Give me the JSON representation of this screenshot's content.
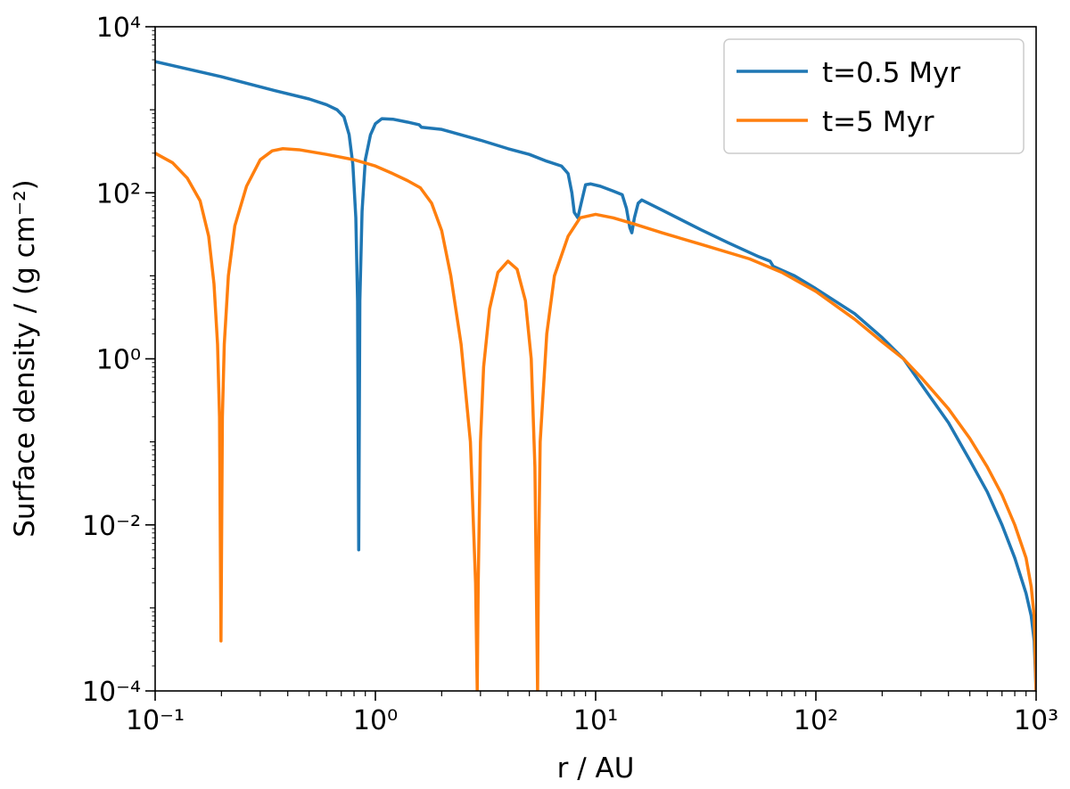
{
  "chart_data": {
    "type": "line",
    "title": "",
    "xlabel": "r / AU",
    "ylabel": "Surface density / (g cm⁻²)",
    "xscale": "log",
    "yscale": "log",
    "xlim": [
      0.1,
      1000
    ],
    "ylim": [
      0.0001,
      10000
    ],
    "grid": false,
    "legend": "top-right",
    "x_ticks": [
      {
        "value": 0.1,
        "label": "10⁻¹"
      },
      {
        "value": 1,
        "label": "10⁰"
      },
      {
        "value": 10,
        "label": "10¹"
      },
      {
        "value": 100,
        "label": "10²"
      },
      {
        "value": 1000,
        "label": "10³"
      }
    ],
    "y_ticks": [
      {
        "value": 0.0001,
        "label": "10⁻⁴"
      },
      {
        "value": 0.01,
        "label": "10⁻²"
      },
      {
        "value": 1,
        "label": "10⁰"
      },
      {
        "value": 100,
        "label": "10²"
      },
      {
        "value": 10000,
        "label": "10⁴"
      }
    ],
    "series": [
      {
        "name": "t=0.5 Myr",
        "color": "#1f77b4",
        "points": [
          [
            0.1,
            3800
          ],
          [
            0.2,
            2500
          ],
          [
            0.35,
            1700
          ],
          [
            0.5,
            1350
          ],
          [
            0.6,
            1150
          ],
          [
            0.67,
            1000
          ],
          [
            0.72,
            820
          ],
          [
            0.76,
            500
          ],
          [
            0.79,
            220
          ],
          [
            0.815,
            50
          ],
          [
            0.83,
            5
          ],
          [
            0.84,
            0.005
          ],
          [
            0.85,
            5
          ],
          [
            0.87,
            60
          ],
          [
            0.9,
            250
          ],
          [
            0.95,
            500
          ],
          [
            1.0,
            680
          ],
          [
            1.07,
            780
          ],
          [
            1.2,
            770
          ],
          [
            1.4,
            710
          ],
          [
            1.58,
            660
          ],
          [
            1.62,
            615
          ],
          [
            2.0,
            580
          ],
          [
            3.0,
            430
          ],
          [
            4.0,
            340
          ],
          [
            5.0,
            290
          ],
          [
            6.0,
            240
          ],
          [
            7.0,
            210
          ],
          [
            7.5,
            170
          ],
          [
            7.8,
            100
          ],
          [
            8.0,
            58
          ],
          [
            8.3,
            50
          ],
          [
            8.6,
            75
          ],
          [
            9.0,
            125
          ],
          [
            9.5,
            128
          ],
          [
            10.5,
            120
          ],
          [
            12.0,
            105
          ],
          [
            13.2,
            95
          ],
          [
            13.8,
            65
          ],
          [
            14.3,
            38
          ],
          [
            14.6,
            33
          ],
          [
            15.0,
            50
          ],
          [
            15.6,
            75
          ],
          [
            16.2,
            82
          ],
          [
            20,
            62
          ],
          [
            30,
            36
          ],
          [
            40,
            25
          ],
          [
            55,
            17
          ],
          [
            62,
            15
          ],
          [
            64,
            13
          ],
          [
            80,
            10
          ],
          [
            100,
            7
          ],
          [
            150,
            3.5
          ],
          [
            200,
            1.8
          ],
          [
            250,
            1.0
          ],
          [
            300,
            0.5
          ],
          [
            400,
            0.17
          ],
          [
            500,
            0.06
          ],
          [
            600,
            0.025
          ],
          [
            700,
            0.01
          ],
          [
            800,
            0.004
          ],
          [
            900,
            0.0015
          ],
          [
            950,
            0.0008
          ],
          [
            980,
            0.0004
          ],
          [
            1000,
            0.0001
          ]
        ]
      },
      {
        "name": "t=5 Myr",
        "color": "#ff7f0e",
        "points": [
          [
            0.1,
            300
          ],
          [
            0.12,
            230
          ],
          [
            0.14,
            150
          ],
          [
            0.16,
            80
          ],
          [
            0.175,
            30
          ],
          [
            0.185,
            8
          ],
          [
            0.192,
            1.5
          ],
          [
            0.196,
            0.2
          ],
          [
            0.199,
            0.0004
          ],
          [
            0.202,
            0.2
          ],
          [
            0.206,
            1.5
          ],
          [
            0.215,
            10
          ],
          [
            0.23,
            40
          ],
          [
            0.26,
            120
          ],
          [
            0.3,
            250
          ],
          [
            0.34,
            320
          ],
          [
            0.38,
            340
          ],
          [
            0.45,
            330
          ],
          [
            0.6,
            290
          ],
          [
            0.8,
            250
          ],
          [
            1.0,
            210
          ],
          [
            1.2,
            170
          ],
          [
            1.4,
            140
          ],
          [
            1.6,
            115
          ],
          [
            1.8,
            75
          ],
          [
            2.0,
            35
          ],
          [
            2.2,
            10
          ],
          [
            2.45,
            1.5
          ],
          [
            2.7,
            0.1
          ],
          [
            2.85,
            0.002
          ],
          [
            2.9,
            0.0001
          ],
          [
            2.93,
            0.002
          ],
          [
            3.0,
            0.1
          ],
          [
            3.1,
            0.8
          ],
          [
            3.3,
            4
          ],
          [
            3.6,
            11
          ],
          [
            4.0,
            15
          ],
          [
            4.4,
            12
          ],
          [
            4.8,
            5
          ],
          [
            5.1,
            1.0
          ],
          [
            5.3,
            0.05
          ],
          [
            5.45,
            0.0001
          ],
          [
            5.5,
            0.003
          ],
          [
            5.6,
            0.1
          ],
          [
            6.0,
            2
          ],
          [
            6.5,
            10
          ],
          [
            7.5,
            30
          ],
          [
            8.5,
            50
          ],
          [
            10,
            55
          ],
          [
            12,
            50
          ],
          [
            15,
            42
          ],
          [
            20,
            33
          ],
          [
            30,
            24
          ],
          [
            50,
            16
          ],
          [
            70,
            11
          ],
          [
            100,
            6.5
          ],
          [
            150,
            3
          ],
          [
            200,
            1.6
          ],
          [
            250,
            1.0
          ],
          [
            300,
            0.6
          ],
          [
            400,
            0.25
          ],
          [
            500,
            0.11
          ],
          [
            600,
            0.05
          ],
          [
            700,
            0.023
          ],
          [
            800,
            0.01
          ],
          [
            900,
            0.004
          ],
          [
            950,
            0.0018
          ],
          [
            980,
            0.0008
          ],
          [
            1000,
            0.0001
          ]
        ]
      }
    ]
  }
}
